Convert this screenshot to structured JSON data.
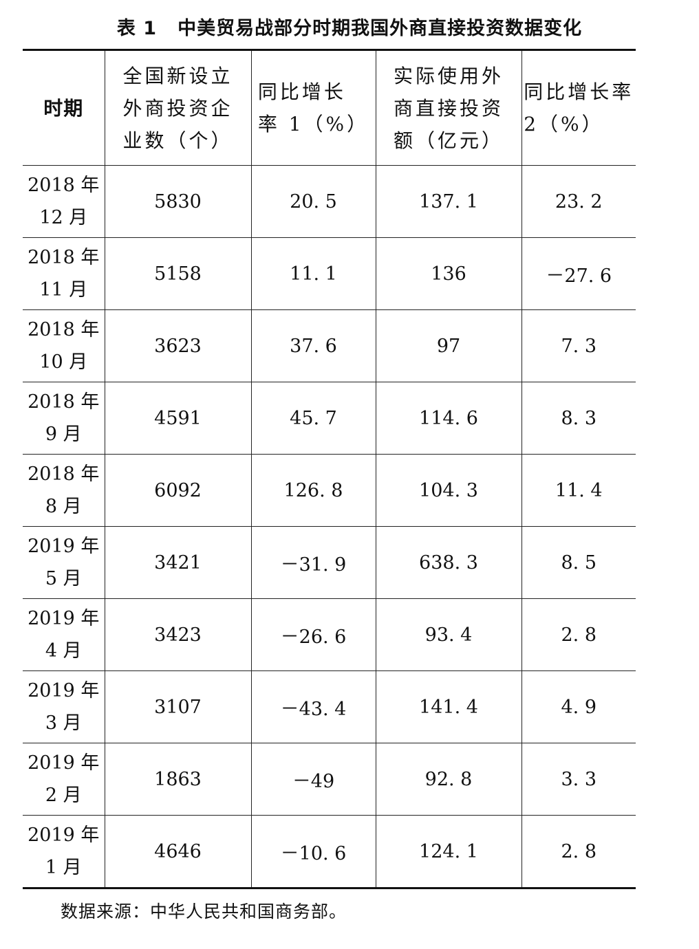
{
  "caption": {
    "number": "表 1",
    "title": "中美贸易战部分时期我国外商直接投资数据变化"
  },
  "headers": [
    {
      "lines": [
        "时期"
      ]
    },
    {
      "lines": [
        "全国新设立",
        "外商投资企",
        "业数（个）"
      ]
    },
    {
      "lines": [
        "同比增长",
        "率 1（%）"
      ]
    },
    {
      "lines": [
        "实际使用外",
        "商直接投资",
        "额（亿元）"
      ]
    },
    {
      "lines": [
        "同比增长率",
        "2（%）"
      ]
    }
  ],
  "rows": [
    {
      "year": "2018 年",
      "month": "12 月",
      "firms": "5830",
      "growth1": "20. 5",
      "fdi": "137. 1",
      "growth2": "23. 2"
    },
    {
      "year": "2018 年",
      "month": "11 月",
      "firms": "5158",
      "growth1": "11. 1",
      "fdi": "136",
      "growth2": "－27. 6"
    },
    {
      "year": "2018 年",
      "month": "10 月",
      "firms": "3623",
      "growth1": "37. 6",
      "fdi": "97",
      "growth2": "7. 3"
    },
    {
      "year": "2018 年",
      "month": "9 月",
      "firms": "4591",
      "growth1": "45. 7",
      "fdi": "114. 6",
      "growth2": "8. 3"
    },
    {
      "year": "2018 年",
      "month": "8 月",
      "firms": "6092",
      "growth1": "126. 8",
      "fdi": "104. 3",
      "growth2": "11. 4"
    },
    {
      "year": "2019 年",
      "month": "5 月",
      "firms": "3421",
      "growth1": "－31. 9",
      "fdi": "638. 3",
      "growth2": "8. 5"
    },
    {
      "year": "2019 年",
      "month": "4 月",
      "firms": "3423",
      "growth1": "－26. 6",
      "fdi": "93. 4",
      "growth2": "2. 8"
    },
    {
      "year": "2019 年",
      "month": "3 月",
      "firms": "3107",
      "growth1": "－43. 4",
      "fdi": "141. 4",
      "growth2": "4. 9"
    },
    {
      "year": "2019 年",
      "month": "2 月",
      "firms": "1863",
      "growth1": "－49",
      "fdi": "92. 8",
      "growth2": "3. 3"
    },
    {
      "year": "2019 年",
      "month": "1 月",
      "firms": "4646",
      "growth1": "－10. 6",
      "fdi": "124. 1",
      "growth2": "2. 8"
    }
  ],
  "source_note": "数据来源：中华人民共和国商务部。"
}
